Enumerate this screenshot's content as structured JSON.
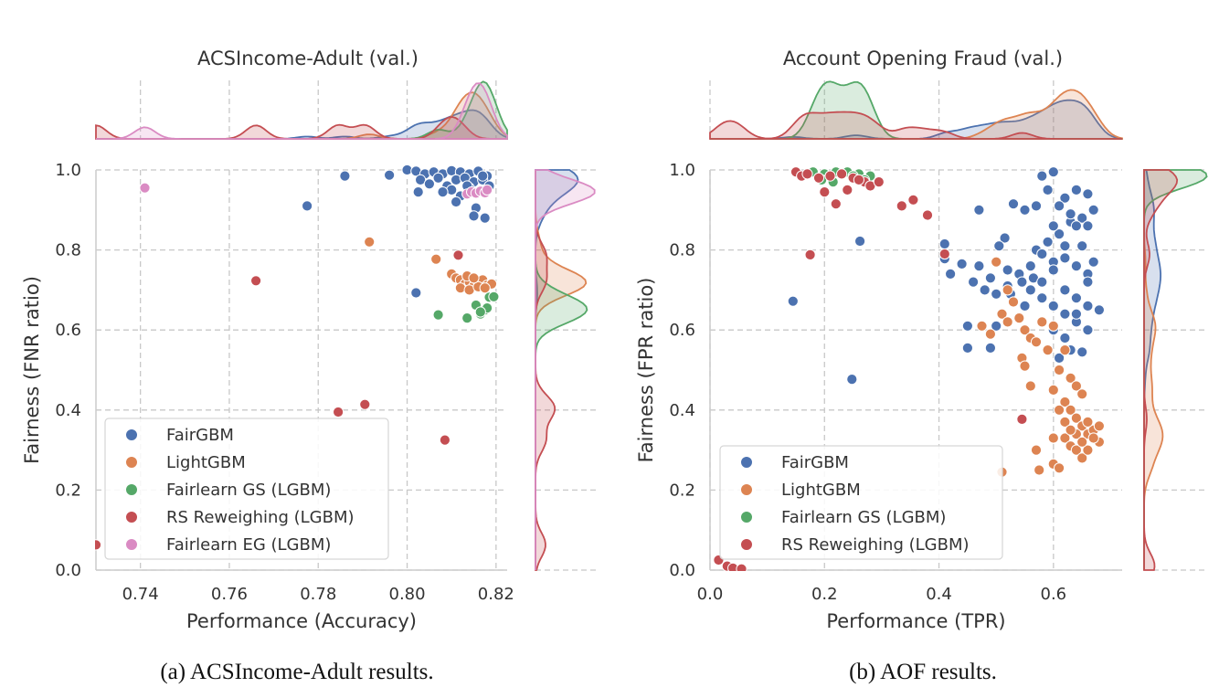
{
  "captions": [
    "(a) ACSIncome-Adult results.",
    "(b) AOF results."
  ],
  "colors": {
    "FairGBM": "#4c72b0",
    "LightGBM": "#dd8452",
    "Fairlearn GS (LGBM)": "#55a868",
    "RS Reweighing (LGBM)": "#c44e52",
    "Fairlearn EG (LGBM)": "#da8bc3"
  },
  "chart_data": [
    {
      "type": "scatter",
      "title": "ACSIncome-Adult (val.)",
      "xlabel": "Performance (Accuracy)",
      "ylabel": "Fairness (FNR ratio)",
      "xlim": [
        0.73,
        0.8225
      ],
      "ylim": [
        0,
        1.0
      ],
      "xticks": [
        0.74,
        0.76,
        0.78,
        0.8,
        0.82
      ],
      "xtick_labels": [
        "0.74",
        "0.76",
        "0.78",
        "0.80",
        "0.82"
      ],
      "yticks": [
        0,
        0.2,
        0.4,
        0.6,
        0.8,
        1.0
      ],
      "ytick_labels": [
        "0.0",
        "0.2",
        "0.4",
        "0.6",
        "0.8",
        "1.0"
      ],
      "legend_position": "lower-left",
      "series": [
        {
          "name": "FairGBM",
          "points": [
            [
              0.7775,
              0.91
            ],
            [
              0.786,
              0.985
            ],
            [
              0.796,
              0.987
            ],
            [
              0.8,
              1.0
            ],
            [
              0.802,
              0.997
            ],
            [
              0.804,
              0.99
            ],
            [
              0.806,
              0.995
            ],
            [
              0.808,
              0.99
            ],
            [
              0.81,
              0.998
            ],
            [
              0.812,
              0.995
            ],
            [
              0.814,
              0.99
            ],
            [
              0.816,
              0.997
            ],
            [
              0.818,
              0.985
            ],
            [
              0.803,
              0.975
            ],
            [
              0.805,
              0.965
            ],
            [
              0.807,
              0.98
            ],
            [
              0.809,
              0.96
            ],
            [
              0.811,
              0.975
            ],
            [
              0.813,
              0.98
            ],
            [
              0.815,
              0.97
            ],
            [
              0.817,
              0.975
            ],
            [
              0.81,
              0.95
            ],
            [
              0.812,
              0.935
            ],
            [
              0.814,
              0.955
            ],
            [
              0.816,
              0.945
            ],
            [
              0.8185,
              0.96
            ],
            [
              0.8025,
              0.945
            ],
            [
              0.808,
              0.945
            ],
            [
              0.811,
              0.92
            ],
            [
              0.8155,
              0.905
            ],
            [
              0.815,
              0.885
            ],
            [
              0.8175,
              0.88
            ],
            [
              0.802,
              0.693
            ],
            [
              0.8135,
              0.96
            ],
            [
              0.817,
              0.985
            ]
          ]
        },
        {
          "name": "LightGBM",
          "points": [
            [
              0.7915,
              0.82
            ],
            [
              0.8065,
              0.777
            ],
            [
              0.81,
              0.74
            ],
            [
              0.811,
              0.73
            ],
            [
              0.812,
              0.725
            ],
            [
              0.813,
              0.715
            ],
            [
              0.814,
              0.72
            ],
            [
              0.815,
              0.71
            ],
            [
              0.816,
              0.72
            ],
            [
              0.817,
              0.725
            ],
            [
              0.818,
              0.712
            ],
            [
              0.819,
              0.715
            ],
            [
              0.812,
              0.705
            ],
            [
              0.814,
              0.7
            ],
            [
              0.816,
              0.708
            ],
            [
              0.8135,
              0.735
            ],
            [
              0.815,
              0.73
            ],
            [
              0.8175,
              0.705
            ]
          ]
        },
        {
          "name": "Fairlearn GS (LGBM)",
          "points": [
            [
              0.807,
              0.638
            ],
            [
              0.8135,
              0.63
            ],
            [
              0.8155,
              0.662
            ],
            [
              0.8165,
              0.64
            ],
            [
              0.8175,
              0.65
            ],
            [
              0.818,
              0.655
            ],
            [
              0.8185,
              0.682
            ],
            [
              0.8195,
              0.683
            ],
            [
              0.8165,
              0.645
            ]
          ]
        },
        {
          "name": "RS Reweighing (LGBM)",
          "points": [
            [
              0.766,
              0.723
            ],
            [
              0.8115,
              0.787
            ],
            [
              0.7905,
              0.414
            ],
            [
              0.7845,
              0.395
            ],
            [
              0.8085,
              0.325
            ],
            [
              0.73,
              0.063
            ]
          ]
        },
        {
          "name": "Fairlearn EG (LGBM)",
          "points": [
            [
              0.741,
              0.955
            ],
            [
              0.8135,
              0.94
            ],
            [
              0.8145,
              0.945
            ],
            [
              0.8155,
              0.942
            ],
            [
              0.8165,
              0.947
            ],
            [
              0.8175,
              0.943
            ],
            [
              0.818,
              0.95
            ]
          ]
        }
      ]
    },
    {
      "type": "scatter",
      "title": "Account Opening Fraud (val.)",
      "xlabel": "Performance (TPR)",
      "ylabel": "Fairness (FPR ratio)",
      "xlim": [
        0,
        0.72
      ],
      "ylim": [
        0,
        1.0
      ],
      "xticks": [
        0.0,
        0.2,
        0.4,
        0.6
      ],
      "xtick_labels": [
        "0.0",
        "0.2",
        "0.4",
        "0.6"
      ],
      "yticks": [
        0,
        0.2,
        0.4,
        0.6,
        0.8,
        1.0
      ],
      "ytick_labels": [
        "0.0",
        "0.2",
        "0.4",
        "0.6",
        "0.8",
        "1.0"
      ],
      "legend_position": "lower-left",
      "series": [
        {
          "name": "FairGBM",
          "points": [
            [
              0.145,
              0.672
            ],
            [
              0.262,
              0.822
            ],
            [
              0.248,
              0.477
            ],
            [
              0.41,
              0.815
            ],
            [
              0.41,
              0.778
            ],
            [
              0.42,
              0.74
            ],
            [
              0.44,
              0.765
            ],
            [
              0.46,
              0.72
            ],
            [
              0.47,
              0.76
            ],
            [
              0.48,
              0.7
            ],
            [
              0.49,
              0.73
            ],
            [
              0.5,
              0.69
            ],
            [
              0.52,
              0.71
            ],
            [
              0.52,
              0.75
            ],
            [
              0.54,
              0.74
            ],
            [
              0.55,
              0.66
            ],
            [
              0.56,
              0.7
            ],
            [
              0.58,
              0.68
            ],
            [
              0.6,
              0.66
            ],
            [
              0.62,
              0.64
            ],
            [
              0.64,
              0.62
            ],
            [
              0.66,
              0.6
            ],
            [
              0.63,
              0.55
            ],
            [
              0.65,
              0.545
            ],
            [
              0.61,
              0.53
            ],
            [
              0.45,
              0.555
            ],
            [
              0.49,
              0.555
            ],
            [
              0.45,
              0.61
            ],
            [
              0.5,
              0.61
            ],
            [
              0.57,
              0.8
            ],
            [
              0.59,
              0.82
            ],
            [
              0.61,
              0.84
            ],
            [
              0.63,
              0.87
            ],
            [
              0.65,
              0.88
            ],
            [
              0.67,
              0.9
            ],
            [
              0.62,
              0.78
            ],
            [
              0.64,
              0.76
            ],
            [
              0.66,
              0.74
            ],
            [
              0.6,
              0.77
            ],
            [
              0.58,
              0.79
            ],
            [
              0.56,
              0.76
            ],
            [
              0.62,
              0.93
            ],
            [
              0.64,
              0.95
            ],
            [
              0.66,
              0.94
            ],
            [
              0.6,
              0.995
            ],
            [
              0.55,
              0.9
            ],
            [
              0.53,
              0.915
            ],
            [
              0.58,
              0.985
            ],
            [
              0.47,
              0.9
            ],
            [
              0.515,
              0.83
            ],
            [
              0.505,
              0.81
            ],
            [
              0.62,
              0.7
            ],
            [
              0.64,
              0.68
            ],
            [
              0.66,
              0.66
            ],
            [
              0.68,
              0.65
            ],
            [
              0.6,
              0.6
            ],
            [
              0.62,
              0.58
            ],
            [
              0.64,
              0.64
            ],
            [
              0.66,
              0.72
            ],
            [
              0.67,
              0.77
            ],
            [
              0.65,
              0.81
            ],
            [
              0.63,
              0.89
            ],
            [
              0.61,
              0.91
            ],
            [
              0.59,
              0.95
            ],
            [
              0.57,
              0.91
            ],
            [
              0.565,
              0.73
            ],
            [
              0.545,
              0.72
            ],
            [
              0.525,
              0.69
            ],
            [
              0.6,
              0.86
            ],
            [
              0.64,
              0.86
            ],
            [
              0.66,
              0.86
            ],
            [
              0.62,
              0.81
            ],
            [
              0.6,
              0.75
            ],
            [
              0.58,
              0.72
            ]
          ]
        },
        {
          "name": "LightGBM",
          "points": [
            [
              0.51,
              0.245
            ],
            [
              0.57,
              0.3
            ],
            [
              0.575,
              0.25
            ],
            [
              0.6,
              0.265
            ],
            [
              0.61,
              0.255
            ],
            [
              0.5,
              0.77
            ],
            [
              0.52,
              0.7
            ],
            [
              0.53,
              0.67
            ],
            [
              0.51,
              0.64
            ],
            [
              0.52,
              0.62
            ],
            [
              0.54,
              0.63
            ],
            [
              0.55,
              0.6
            ],
            [
              0.56,
              0.58
            ],
            [
              0.58,
              0.62
            ],
            [
              0.6,
              0.61
            ],
            [
              0.62,
              0.55
            ],
            [
              0.61,
              0.5
            ],
            [
              0.63,
              0.48
            ],
            [
              0.64,
              0.46
            ],
            [
              0.65,
              0.44
            ],
            [
              0.6,
              0.45
            ],
            [
              0.62,
              0.42
            ],
            [
              0.63,
              0.4
            ],
            [
              0.64,
              0.38
            ],
            [
              0.65,
              0.36
            ],
            [
              0.66,
              0.34
            ],
            [
              0.67,
              0.35
            ],
            [
              0.68,
              0.32
            ],
            [
              0.62,
              0.33
            ],
            [
              0.63,
              0.31
            ],
            [
              0.64,
              0.3
            ],
            [
              0.65,
              0.28
            ],
            [
              0.66,
              0.3
            ],
            [
              0.64,
              0.34
            ],
            [
              0.65,
              0.32
            ],
            [
              0.66,
              0.37
            ],
            [
              0.67,
              0.33
            ],
            [
              0.68,
              0.36
            ],
            [
              0.62,
              0.37
            ],
            [
              0.63,
              0.35
            ],
            [
              0.61,
              0.4
            ],
            [
              0.6,
              0.33
            ],
            [
              0.56,
              0.46
            ],
            [
              0.545,
              0.53
            ],
            [
              0.55,
              0.51
            ],
            [
              0.49,
              0.59
            ],
            [
              0.475,
              0.61
            ],
            [
              0.57,
              0.57
            ],
            [
              0.59,
              0.55
            ]
          ]
        },
        {
          "name": "Fairlearn GS (LGBM)",
          "points": [
            [
              0.18,
              0.995
            ],
            [
              0.2,
              0.99
            ],
            [
              0.22,
              0.995
            ],
            [
              0.24,
              0.995
            ],
            [
              0.26,
              0.99
            ],
            [
              0.28,
              0.985
            ],
            [
              0.195,
              0.975
            ],
            [
              0.215,
              0.97
            ],
            [
              0.27,
              0.975
            ],
            [
              0.25,
              0.985
            ]
          ]
        },
        {
          "name": "RS Reweighing (LGBM)",
          "points": [
            [
              0.015,
              0.025
            ],
            [
              0.03,
              0.01
            ],
            [
              0.04,
              0.005
            ],
            [
              0.055,
              0.003
            ],
            [
              0.175,
              0.788
            ],
            [
              0.15,
              0.995
            ],
            [
              0.16,
              0.985
            ],
            [
              0.17,
              0.99
            ],
            [
              0.19,
              0.98
            ],
            [
              0.21,
              0.985
            ],
            [
              0.23,
              0.99
            ],
            [
              0.25,
              0.98
            ],
            [
              0.27,
              0.97
            ],
            [
              0.28,
              0.96
            ],
            [
              0.26,
              0.975
            ],
            [
              0.2,
              0.945
            ],
            [
              0.22,
              0.915
            ],
            [
              0.24,
              0.95
            ],
            [
              0.295,
              0.97
            ],
            [
              0.335,
              0.91
            ],
            [
              0.355,
              0.925
            ],
            [
              0.38,
              0.887
            ],
            [
              0.41,
              0.79
            ],
            [
              0.545,
              0.377
            ]
          ]
        }
      ]
    }
  ]
}
